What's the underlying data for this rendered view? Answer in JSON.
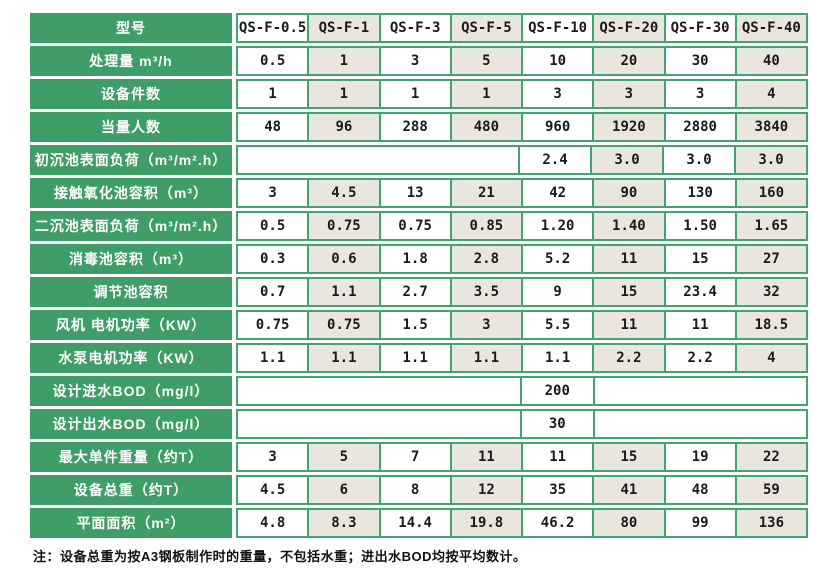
{
  "colors": {
    "green_fill": "#3F9D68",
    "green_border": "#44A471",
    "cell_white": "#FFFFFF",
    "cell_alt": "#E8E6DD",
    "text_dark": "#1A1A1A",
    "label_text": "#FFFFFF"
  },
  "table": {
    "header": {
      "label": "型号",
      "columns": [
        "QS-F-0.5",
        "QS-F-1",
        "QS-F-3",
        "QS-F-5",
        "QS-F-10",
        "QS-F-20",
        "QS-F-30",
        "QS-F-40"
      ]
    },
    "rows": [
      {
        "label": "处理量 m³/h",
        "cells": [
          {
            "v": "0.5"
          },
          {
            "v": "1"
          },
          {
            "v": "3"
          },
          {
            "v": "5"
          },
          {
            "v": "10"
          },
          {
            "v": "20"
          },
          {
            "v": "30"
          },
          {
            "v": "40"
          }
        ]
      },
      {
        "label": "设备件数",
        "cells": [
          {
            "v": "1"
          },
          {
            "v": "1"
          },
          {
            "v": "1"
          },
          {
            "v": "1"
          },
          {
            "v": "3"
          },
          {
            "v": "3"
          },
          {
            "v": "3"
          },
          {
            "v": "4"
          }
        ]
      },
      {
        "label": "当量人数",
        "cells": [
          {
            "v": "48"
          },
          {
            "v": "96"
          },
          {
            "v": "288"
          },
          {
            "v": "480"
          },
          {
            "v": "960"
          },
          {
            "v": "1920"
          },
          {
            "v": "2880"
          },
          {
            "v": "3840"
          }
        ]
      },
      {
        "label": "初沉池表面负荷（m³/m².h）",
        "cells": [
          {
            "v": "",
            "span": 4
          },
          {
            "v": "2.4"
          },
          {
            "v": "3.0"
          },
          {
            "v": "3.0"
          },
          {
            "v": "3.0"
          }
        ]
      },
      {
        "label": "接触氧化池容积（m³）",
        "cells": [
          {
            "v": "3"
          },
          {
            "v": "4.5"
          },
          {
            "v": "13"
          },
          {
            "v": "21"
          },
          {
            "v": "42"
          },
          {
            "v": "90"
          },
          {
            "v": "130"
          },
          {
            "v": "160"
          }
        ]
      },
      {
        "label": "二沉池表面负荷（m³/m².h）",
        "cells": [
          {
            "v": "0.5"
          },
          {
            "v": "0.75"
          },
          {
            "v": "0.75"
          },
          {
            "v": "0.85"
          },
          {
            "v": "1.20"
          },
          {
            "v": "1.40"
          },
          {
            "v": "1.50"
          },
          {
            "v": "1.65"
          }
        ]
      },
      {
        "label": "消毒池容积（m³）",
        "cells": [
          {
            "v": "0.3"
          },
          {
            "v": "0.6"
          },
          {
            "v": "1.8"
          },
          {
            "v": "2.8"
          },
          {
            "v": "5.2"
          },
          {
            "v": "11"
          },
          {
            "v": "15"
          },
          {
            "v": "27"
          }
        ]
      },
      {
        "label": "调节池容积",
        "cells": [
          {
            "v": "0.7"
          },
          {
            "v": "1.1"
          },
          {
            "v": "2.7"
          },
          {
            "v": "3.5"
          },
          {
            "v": "9"
          },
          {
            "v": "15"
          },
          {
            "v": "23.4"
          },
          {
            "v": "32"
          }
        ]
      },
      {
        "label": "风机 电机功率（KW）",
        "cells": [
          {
            "v": "0.75"
          },
          {
            "v": "0.75"
          },
          {
            "v": "1.5"
          },
          {
            "v": "3"
          },
          {
            "v": "5.5"
          },
          {
            "v": "11"
          },
          {
            "v": "11"
          },
          {
            "v": "18.5"
          }
        ]
      },
      {
        "label": "水泵电机功率（KW）",
        "cells": [
          {
            "v": "1.1"
          },
          {
            "v": "1.1"
          },
          {
            "v": "1.1"
          },
          {
            "v": "1.1"
          },
          {
            "v": "1.1"
          },
          {
            "v": "2.2"
          },
          {
            "v": "2.2"
          },
          {
            "v": "4"
          }
        ]
      },
      {
        "label": "设计进水BOD（mg/l）",
        "cells": [
          {
            "v": "",
            "span": 4
          },
          {
            "v": "200"
          },
          {
            "v": "",
            "span": 3
          }
        ]
      },
      {
        "label": "设计出水BOD（mg/l）",
        "cells": [
          {
            "v": "",
            "span": 4
          },
          {
            "v": "30"
          },
          {
            "v": "",
            "span": 3
          }
        ]
      },
      {
        "label": "最大单件重量（约T）",
        "cells": [
          {
            "v": "3"
          },
          {
            "v": "5"
          },
          {
            "v": "7"
          },
          {
            "v": "11"
          },
          {
            "v": "11"
          },
          {
            "v": "15"
          },
          {
            "v": "19"
          },
          {
            "v": "22"
          }
        ]
      },
      {
        "label": "设备总重（约T）",
        "cells": [
          {
            "v": "4.5"
          },
          {
            "v": "6"
          },
          {
            "v": "8"
          },
          {
            "v": "12"
          },
          {
            "v": "35"
          },
          {
            "v": "41"
          },
          {
            "v": "48"
          },
          {
            "v": "59"
          }
        ]
      },
      {
        "label": "平面面积（m²）",
        "cells": [
          {
            "v": "4.8"
          },
          {
            "v": "8.3"
          },
          {
            "v": "14.4"
          },
          {
            "v": "19.8"
          },
          {
            "v": "46.2"
          },
          {
            "v": "80"
          },
          {
            "v": "99"
          },
          {
            "v": "136"
          }
        ]
      }
    ]
  },
  "note": "注：设备总重为按A3钢板制作时的重量，不包括水重；进出水BOD均按平均数计。"
}
